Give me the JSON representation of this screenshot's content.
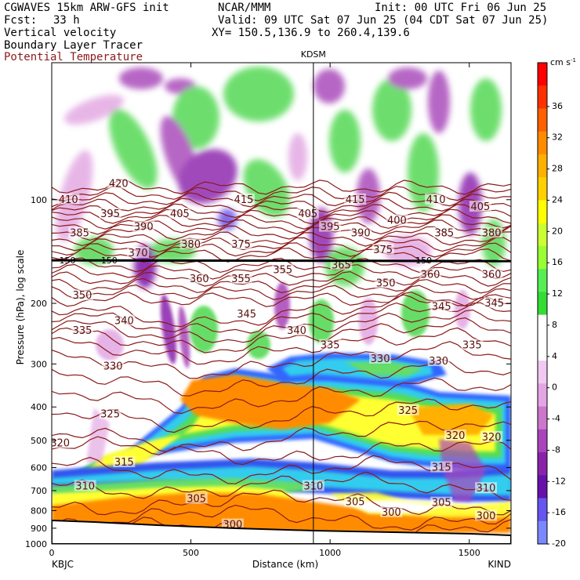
{
  "header": {
    "model": "CGWAVES 15km ARW-GFS init",
    "org": "NCAR/MMM",
    "init": "Init: 00 UTC Fri 06 Jun 25",
    "fcst_label": "Fcst:",
    "fcst_value": "33 h",
    "valid": "Valid: 09 UTC Sat 07 Jun 25 (04 CDT Sat 07 Jun 25)",
    "xy": "XY= 150.5,136.9 to 260.4,139.6",
    "fields": [
      "Vertical velocity",
      "Boundary Layer Tracer"
    ],
    "contour_field": "Potential Temperature",
    "colors": {
      "contour": "#8b1a1a"
    }
  },
  "chart_data": {
    "type": "heatmap",
    "title": "",
    "xlabel": "Distance (km)",
    "ylabel": "Pressure (hPa), log scale",
    "xlim": [
      0,
      1650
    ],
    "ylim": [
      1000,
      40
    ],
    "y_scale": "log",
    "x_ticks": [
      0,
      500,
      1000,
      1500
    ],
    "y_ticks": [
      100,
      200,
      300,
      400,
      500,
      600,
      700,
      800,
      900,
      1000
    ],
    "endpoints": {
      "left": "KBJC",
      "right": "KIND"
    },
    "marker": {
      "label": "KDSM",
      "x": 940
    },
    "colorbar": {
      "unit": "cm s",
      "unit_exp": "-1",
      "ticks": [
        36,
        32,
        28,
        24,
        20,
        16,
        12,
        8,
        4,
        0,
        -4,
        -8,
        -12,
        -16,
        -20
      ],
      "colors": [
        "#ff0000",
        "#ff3000",
        "#ff6000",
        "#ff8c00",
        "#ffb000",
        "#ffd000",
        "#ffff00",
        "#ccff33",
        "#99ff33",
        "#55ee55",
        "#33dd33",
        "#ffffff",
        "#ffffff",
        "#f2c9f2",
        "#e4a5e4",
        "#cc77cc",
        "#aa44bb",
        "#8822aa",
        "#6611aa",
        "#6655ee",
        "#7a88ff"
      ]
    },
    "tropopause_labels": [
      {
        "x": 10,
        "p": 150,
        "text": "150"
      },
      {
        "x": 160,
        "p": 150,
        "text": "150"
      },
      {
        "x": 1290,
        "p": 150,
        "text": "150"
      }
    ],
    "theta_labels": [
      {
        "x": 60,
        "p": 100,
        "text": "410"
      },
      {
        "x": 240,
        "p": 90,
        "text": "420"
      },
      {
        "x": 210,
        "p": 110,
        "text": "395"
      },
      {
        "x": 330,
        "p": 120,
        "text": "390"
      },
      {
        "x": 460,
        "p": 110,
        "text": "405"
      },
      {
        "x": 690,
        "p": 100,
        "text": "415"
      },
      {
        "x": 920,
        "p": 110,
        "text": "405"
      },
      {
        "x": 1090,
        "p": 100,
        "text": "415"
      },
      {
        "x": 1380,
        "p": 100,
        "text": "410"
      },
      {
        "x": 1540,
        "p": 105,
        "text": "405"
      },
      {
        "x": 100,
        "p": 125,
        "text": "385"
      },
      {
        "x": 500,
        "p": 135,
        "text": "380"
      },
      {
        "x": 680,
        "p": 135,
        "text": "375"
      },
      {
        "x": 1000,
        "p": 120,
        "text": "395"
      },
      {
        "x": 1110,
        "p": 125,
        "text": "390"
      },
      {
        "x": 1240,
        "p": 115,
        "text": "400"
      },
      {
        "x": 1190,
        "p": 140,
        "text": "375"
      },
      {
        "x": 1410,
        "p": 125,
        "text": "385"
      },
      {
        "x": 1580,
        "p": 125,
        "text": "380"
      },
      {
        "x": 310,
        "p": 143,
        "text": "370"
      },
      {
        "x": 830,
        "p": 160,
        "text": "355"
      },
      {
        "x": 1040,
        "p": 155,
        "text": "365"
      },
      {
        "x": 530,
        "p": 170,
        "text": "360"
      },
      {
        "x": 680,
        "p": 170,
        "text": "355"
      },
      {
        "x": 1200,
        "p": 175,
        "text": "350"
      },
      {
        "x": 1360,
        "p": 165,
        "text": "360"
      },
      {
        "x": 1580,
        "p": 165,
        "text": "360"
      },
      {
        "x": 110,
        "p": 190,
        "text": "350"
      },
      {
        "x": 260,
        "p": 225,
        "text": "340"
      },
      {
        "x": 700,
        "p": 215,
        "text": "345"
      },
      {
        "x": 1400,
        "p": 205,
        "text": "345"
      },
      {
        "x": 1590,
        "p": 200,
        "text": "345"
      },
      {
        "x": 110,
        "p": 240,
        "text": "335"
      },
      {
        "x": 880,
        "p": 240,
        "text": "340"
      },
      {
        "x": 1000,
        "p": 265,
        "text": "335"
      },
      {
        "x": 1510,
        "p": 265,
        "text": "335"
      },
      {
        "x": 220,
        "p": 305,
        "text": "330"
      },
      {
        "x": 1180,
        "p": 290,
        "text": "330"
      },
      {
        "x": 1390,
        "p": 295,
        "text": "330"
      },
      {
        "x": 210,
        "p": 420,
        "text": "325"
      },
      {
        "x": 1280,
        "p": 410,
        "text": "325"
      },
      {
        "x": 1450,
        "p": 485,
        "text": "320"
      },
      {
        "x": 1580,
        "p": 490,
        "text": "320"
      },
      {
        "x": 30,
        "p": 510,
        "text": "320"
      },
      {
        "x": 260,
        "p": 580,
        "text": "315"
      },
      {
        "x": 1400,
        "p": 600,
        "text": "315"
      },
      {
        "x": 120,
        "p": 680,
        "text": "310"
      },
      {
        "x": 940,
        "p": 680,
        "text": "310"
      },
      {
        "x": 1560,
        "p": 690,
        "text": "310"
      },
      {
        "x": 520,
        "p": 740,
        "text": "305"
      },
      {
        "x": 1090,
        "p": 755,
        "text": "305"
      },
      {
        "x": 1400,
        "p": 760,
        "text": "305"
      },
      {
        "x": 1220,
        "p": 810,
        "text": "300"
      },
      {
        "x": 1560,
        "p": 830,
        "text": "300"
      },
      {
        "x": 650,
        "p": 880,
        "text": "300"
      }
    ]
  }
}
